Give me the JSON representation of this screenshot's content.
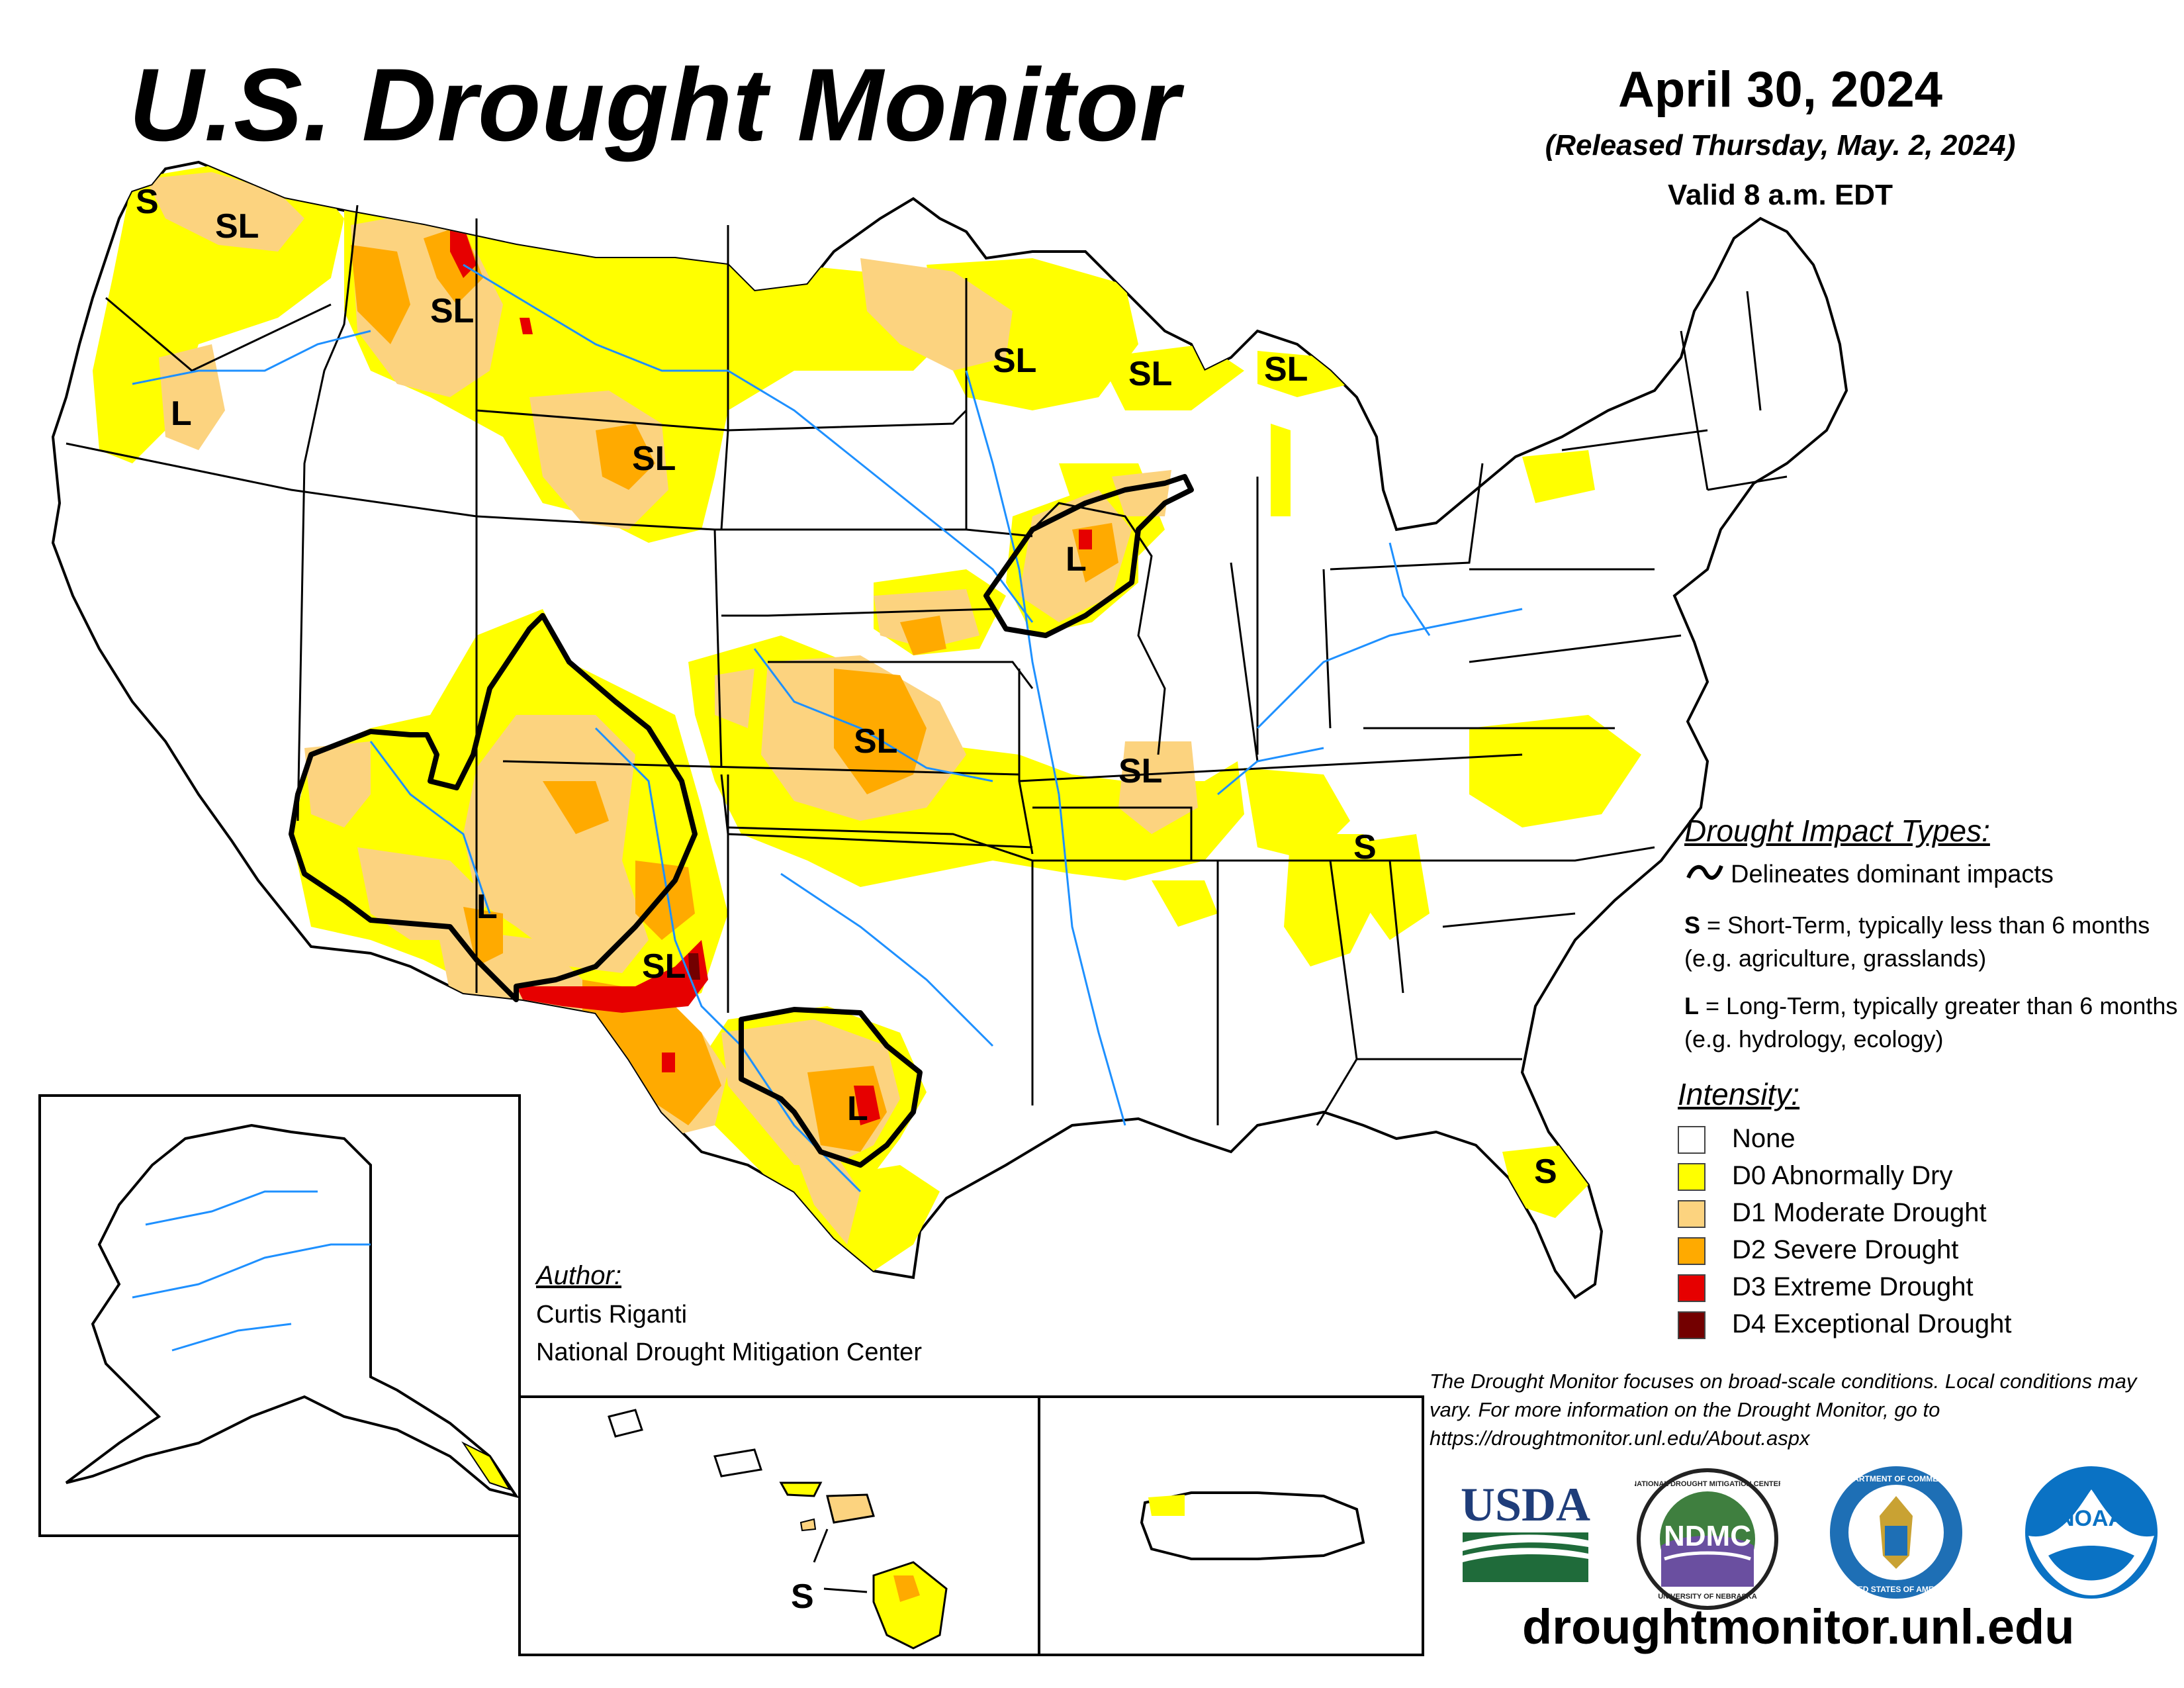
{
  "header": {
    "title": "U.S. Drought Monitor",
    "date": "April 30, 2024",
    "released": "(Released Thursday, May. 2, 2024)",
    "valid": "Valid 8 a.m. EDT"
  },
  "colors": {
    "none": "#ffffff",
    "d0": "#ffff00",
    "d1": "#fcd37f",
    "d2": "#ffaa00",
    "d3": "#e60000",
    "d4": "#730000",
    "water": "#1e90ff",
    "border": "#000000"
  },
  "map_labels": [
    {
      "id": "wa-s",
      "text": "S"
    },
    {
      "id": "wa-sl",
      "text": "SL"
    },
    {
      "id": "mt-sl",
      "text": "SL"
    },
    {
      "id": "or-l",
      "text": "L"
    },
    {
      "id": "wy-sl",
      "text": "SL"
    },
    {
      "id": "mn-sl",
      "text": "SL"
    },
    {
      "id": "wi-sl",
      "text": "SL"
    },
    {
      "id": "mi-sl",
      "text": "SL"
    },
    {
      "id": "ia-l",
      "text": "L"
    },
    {
      "id": "ks-sl",
      "text": "SL"
    },
    {
      "id": "ar-sl",
      "text": "SL"
    },
    {
      "id": "az-l",
      "text": "L"
    },
    {
      "id": "nm-sl",
      "text": "SL"
    },
    {
      "id": "tx-l",
      "text": "L"
    },
    {
      "id": "tn-s",
      "text": "S"
    },
    {
      "id": "fl-s",
      "text": "S"
    },
    {
      "id": "hi-s",
      "text": "S"
    }
  ],
  "legend": {
    "impact_title": "Drought Impact Types:",
    "delineates": "Delineates dominant impacts",
    "short_term_key": "S",
    "short_term_text": "= Short-Term, typically less than 6 months (e.g. agriculture, grasslands)",
    "long_term_key": "L",
    "long_term_text": "= Long-Term, typically greater than 6 months (e.g. hydrology, ecology)",
    "intensity_title": "Intensity:",
    "items": [
      {
        "label": "None",
        "color": "#ffffff"
      },
      {
        "label": "D0 Abnormally Dry",
        "color": "#ffff00"
      },
      {
        "label": "D1 Moderate Drought",
        "color": "#fcd37f"
      },
      {
        "label": "D2 Severe Drought",
        "color": "#ffaa00"
      },
      {
        "label": "D3 Extreme Drought",
        "color": "#e60000"
      },
      {
        "label": "D4 Exceptional Drought",
        "color": "#730000"
      }
    ]
  },
  "author": {
    "title": "Author:",
    "name": "Curtis Riganti",
    "org": "National Drought Mitigation Center"
  },
  "disclaimer": "The Drought Monitor focuses on broad-scale conditions. Local conditions may vary. For more information on the Drought Monitor, go to https://droughtmonitor.unl.edu/About.aspx",
  "website": "droughtmonitor.unl.edu",
  "logos": {
    "usda": "USDA",
    "ndmc": "NDMC",
    "ndmc_ring_top": "NATIONAL DROUGHT MITIGATION CENTER",
    "ndmc_ring_bottom": "UNIVERSITY OF NEBRASKA",
    "doc_ring_top": "DEPARTMENT OF COMMERCE",
    "doc_ring_bottom": "UNITED STATES OF AMERICA",
    "noaa": "NOAA"
  }
}
